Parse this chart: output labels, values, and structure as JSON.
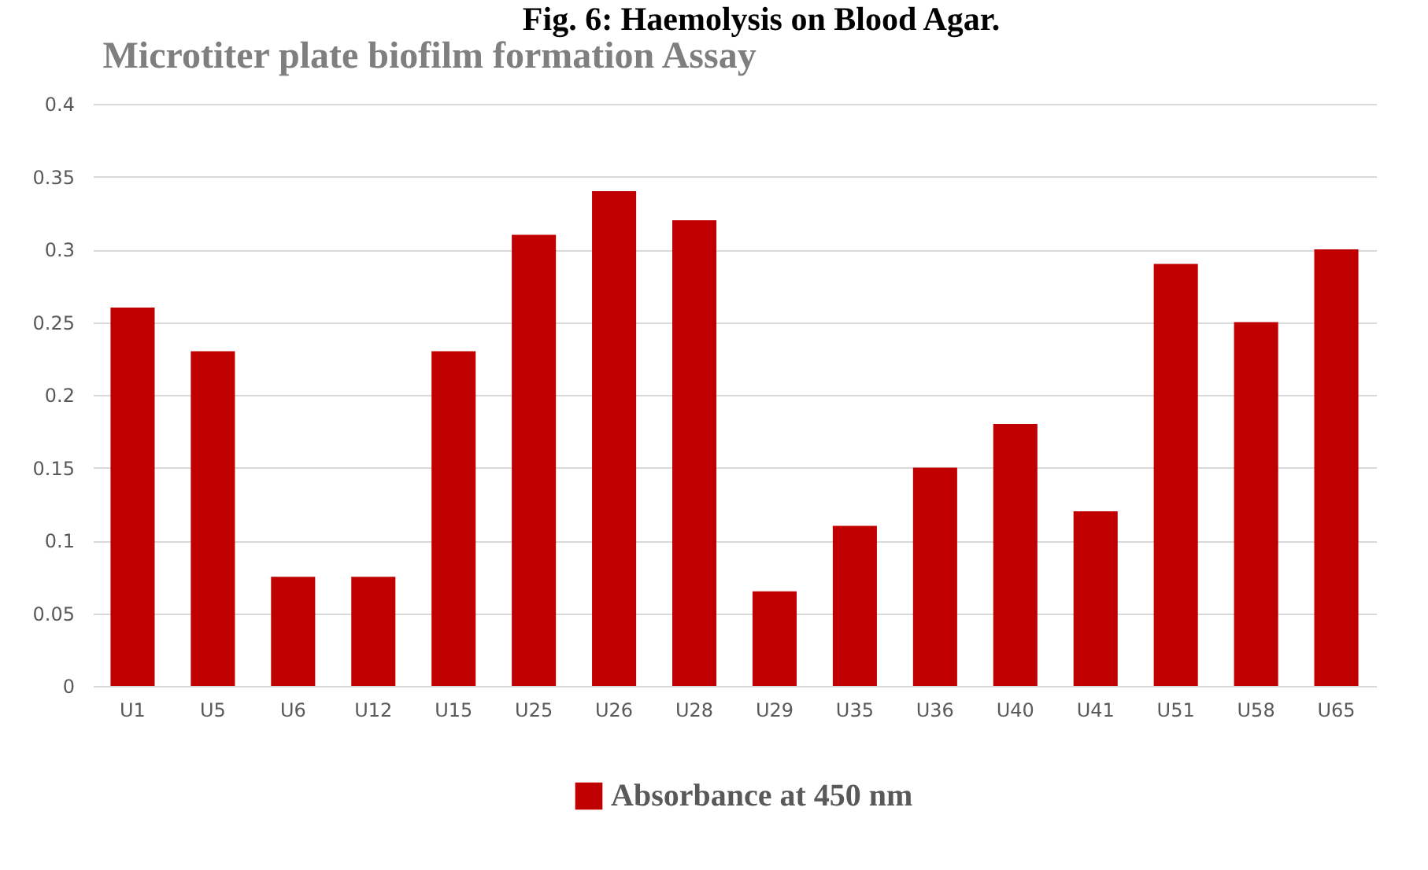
{
  "chart_data": {
    "type": "bar",
    "title": "Microtiter plate biofilm formation Assay",
    "annotations": [
      "Fig. 6: Haemolysis on Blood Agar."
    ],
    "categories": [
      "U1",
      "U5",
      "U6",
      "U12",
      "U15",
      "U25",
      "U26",
      "U28",
      "U29",
      "U35",
      "U36",
      "U40",
      "U41",
      "U51",
      "U58",
      "U65"
    ],
    "series": [
      {
        "name": "Absorbance at 450 nm",
        "color": "#c00000",
        "values": [
          0.26,
          0.23,
          0.075,
          0.075,
          0.23,
          0.31,
          0.34,
          0.32,
          0.065,
          0.11,
          0.15,
          0.18,
          0.12,
          0.29,
          0.25,
          0.3
        ]
      }
    ],
    "ylim": [
      0,
      0.4
    ],
    "yticks": [
      0,
      0.05,
      0.1,
      0.15,
      0.2,
      0.25,
      0.3,
      0.35,
      0.4
    ],
    "grid": "y",
    "legend": "bottom"
  }
}
